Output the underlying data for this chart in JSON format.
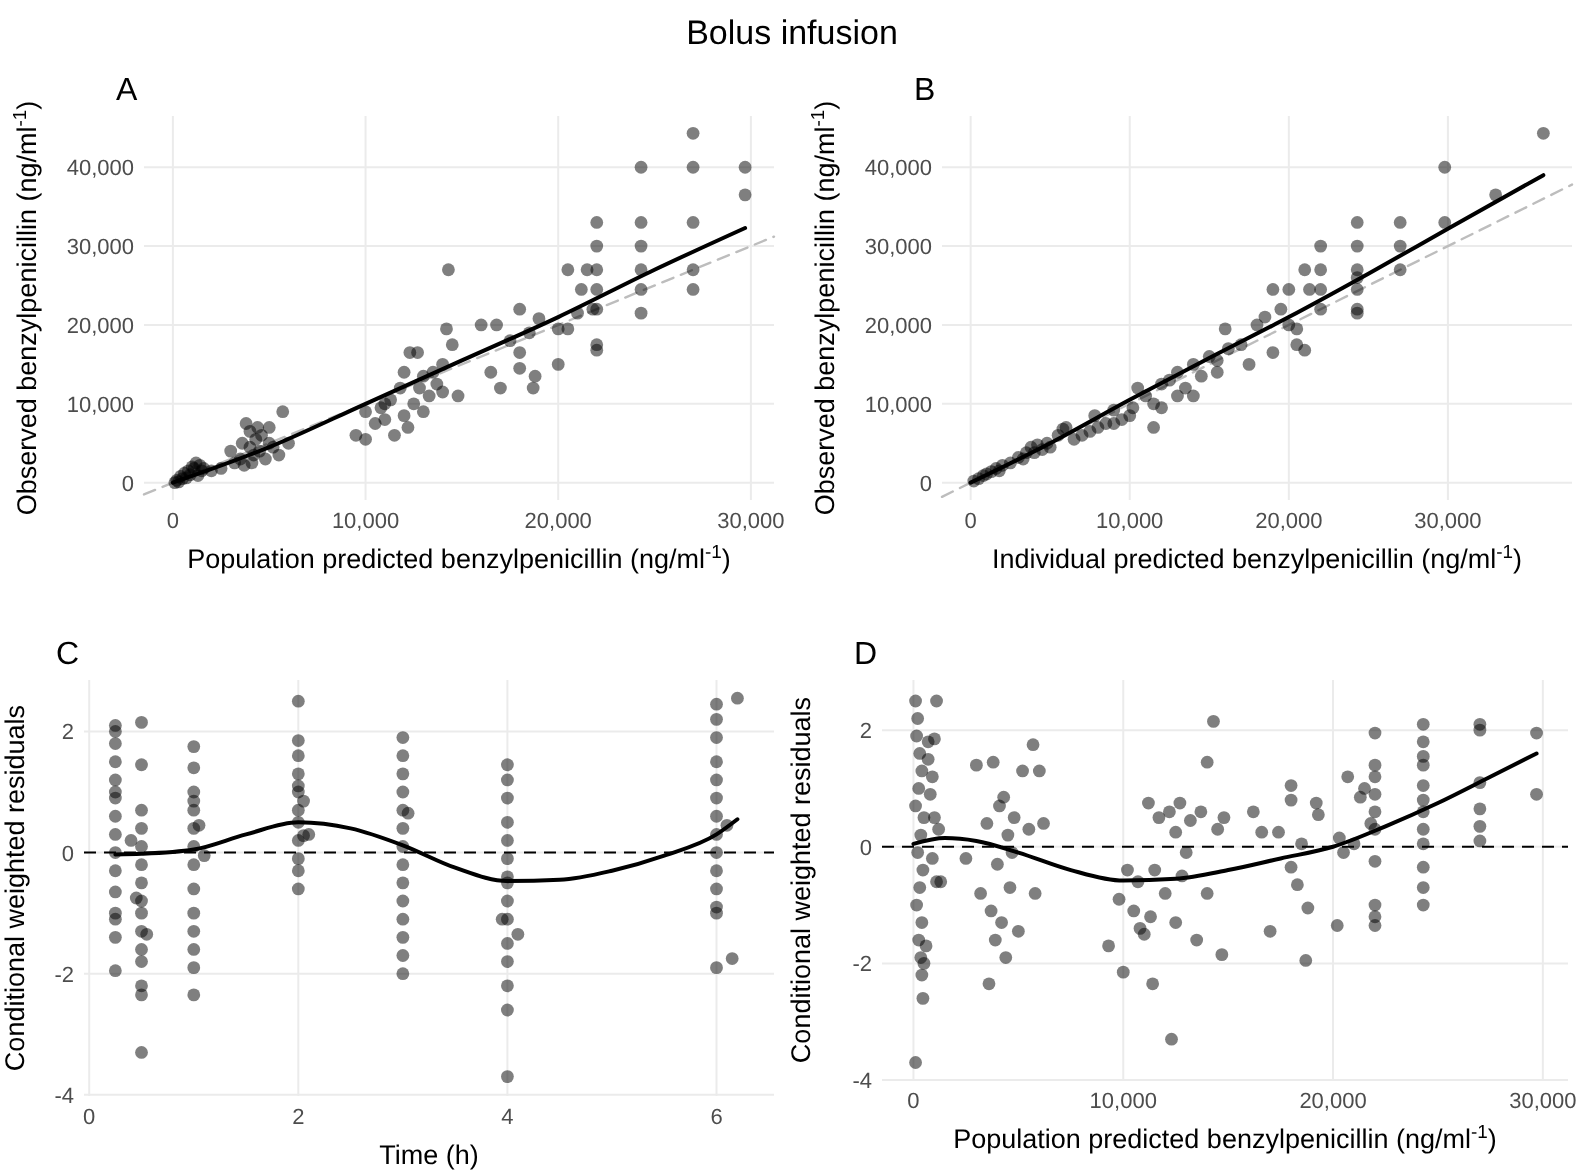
{
  "chart_data": [
    {
      "type": "other",
      "title": "Bolus infusion"
    },
    {
      "type": "scatter",
      "title": "A",
      "xlabel": "Population predicted benzylpenicillin (ng/ml$^{-1}$)",
      "ylabel": "Observed benzylpenicillin (ng/ml$^{-1}$)",
      "xlim": [
        -1500,
        31200
      ],
      "ylim": [
        -2200,
        46500
      ],
      "xticks": [
        0,
        {
          "value": 10000,
          "label": "10,000"
        },
        {
          "value": 20000,
          "label": "20,000"
        },
        {
          "value": 30000,
          "label": "30,000"
        }
      ],
      "yticks": [
        0,
        {
          "value": 10000,
          "label": "10,000"
        },
        {
          "value": 20000,
          "label": "20,000"
        },
        {
          "value": 30000,
          "label": "30,000"
        },
        {
          "value": 40000,
          "label": "40,000"
        }
      ],
      "grid": true,
      "series": [
        {
          "type": "line",
          "color": "#bdbdbd",
          "line_style": "dashed",
          "x": [
            -1500,
            31200
          ],
          "values": [
            -1500,
            31200
          ]
        },
        {
          "type": "scatter",
          "color": "#000000",
          "marker": "circle",
          "x": [
            200,
            400,
            600,
            800,
            1000,
            1200,
            300,
            500,
            900,
            1100,
            1400,
            1500,
            700,
            100,
            1300,
            1600,
            2000,
            2500,
            3000,
            3200,
            3500,
            3600,
            3800,
            4000,
            4000,
            4200,
            4300,
            4500,
            4600,
            4800,
            5000,
            5000,
            5200,
            5500,
            5700,
            6000,
            3700,
            4400,
            4100,
            9500,
            10000,
            10000,
            10500,
            10800,
            11000,
            11300,
            11500,
            11800,
            12000,
            12000,
            12300,
            12500,
            12700,
            12800,
            13000,
            13000,
            13300,
            13500,
            13700,
            14000,
            14000,
            14300,
            14500,
            14800,
            14200,
            11000,
            12200,
            16000,
            16500,
            16800,
            17000,
            17500,
            18000,
            18000,
            18000,
            18500,
            18700,
            18800,
            19000,
            20000,
            20000,
            20500,
            20500,
            21000,
            21200,
            21500,
            21800,
            22000,
            22000,
            22000,
            22000,
            22000,
            22000,
            22000,
            24300,
            24300,
            24300,
            24300,
            24300,
            24300,
            27000,
            27000,
            27000,
            27000,
            27000,
            29700,
            29700
          ],
          "values": [
            300,
            800,
            1200,
            1500,
            2000,
            2500,
            100,
            500,
            1000,
            1800,
            2200,
            1500,
            600,
            0,
            900,
            1800,
            1500,
            1800,
            4000,
            2500,
            3000,
            5000,
            7500,
            4500,
            6500,
            3500,
            5500,
            4000,
            6000,
            3000,
            5000,
            7000,
            4500,
            3500,
            9000,
            5000,
            2200,
            7000,
            2500,
            6000,
            5500,
            9000,
            7500,
            9500,
            8000,
            10500,
            6000,
            12000,
            8500,
            14000,
            16500,
            10000,
            16500,
            12000,
            9000,
            13500,
            11000,
            14000,
            12500,
            15000,
            11500,
            27000,
            17500,
            11000,
            19500,
            10000,
            7000,
            20000,
            14000,
            20000,
            12000,
            18000,
            22000,
            14500,
            16500,
            19000,
            12000,
            13500,
            20800,
            15000,
            19500,
            27000,
            19500,
            21500,
            24500,
            27000,
            22000,
            33000,
            30000,
            27000,
            24500,
            22000,
            17500,
            16800,
            40000,
            33000,
            30000,
            27000,
            24500,
            21500,
            44300,
            40000,
            33000,
            27000,
            24500,
            40000,
            36500
          ]
        },
        {
          "type": "line",
          "color": "#000000",
          "x": [
            0,
            5000,
            10000,
            15000,
            20000,
            25000,
            29700
          ],
          "values": [
            0,
            4500,
            10000,
            15500,
            21000,
            27000,
            32300
          ]
        }
      ]
    },
    {
      "type": "scatter",
      "title": "B",
      "xlabel": "Individual predicted benzylpenicillin (ng/ml$^{-1}$)",
      "ylabel": "Observed benzylpenicillin (ng/ml$^{-1}$)",
      "xlim": [
        -1800,
        37800
      ],
      "ylim": [
        -2200,
        46500
      ],
      "xticks": [
        0,
        {
          "value": 10000,
          "label": "10,000"
        },
        {
          "value": 20000,
          "label": "20,000"
        },
        {
          "value": 30000,
          "label": "30,000"
        }
      ],
      "yticks": [
        0,
        {
          "value": 10000,
          "label": "10,000"
        },
        {
          "value": 20000,
          "label": "20,000"
        },
        {
          "value": 30000,
          "label": "30,000"
        },
        {
          "value": 40000,
          "label": "40,000"
        }
      ],
      "grid": true,
      "series": [
        {
          "type": "line",
          "color": "#bdbdbd",
          "line_style": "dashed",
          "x": [
            -1800,
            37800
          ],
          "values": [
            -1800,
            37800
          ]
        },
        {
          "type": "scatter",
          "color": "#000000",
          "marker": "circle",
          "x": [
            200,
            500,
            800,
            1000,
            1300,
            1600,
            2000,
            2500,
            3000,
            3500,
            3800,
            4000,
            4200,
            4500,
            4800,
            5000,
            5500,
            5800,
            6000,
            6500,
            7000,
            7500,
            7800,
            8000,
            8500,
            9000,
            9500,
            10000,
            10200,
            10500,
            11000,
            11500,
            11500,
            12000,
            12000,
            12500,
            13000,
            13000,
            13500,
            14000,
            14000,
            14500,
            15000,
            15500,
            15500,
            16000,
            16200,
            17000,
            17500,
            18000,
            18500,
            19000,
            19000,
            19500,
            20000,
            20500,
            20500,
            21000,
            21000,
            21300,
            22000,
            22000,
            22000,
            22000,
            24300,
            24300,
            24300,
            24300,
            24300,
            24300,
            24300,
            27000,
            27000,
            27000,
            29800,
            29800,
            33000,
            36000,
            20000,
            1800,
            3300,
            9000
          ],
          "values": [
            200,
            500,
            900,
            1100,
            1400,
            1800,
            2200,
            2500,
            3200,
            3800,
            4500,
            3800,
            4800,
            4200,
            5000,
            4500,
            6000,
            6800,
            7000,
            5500,
            6000,
            6500,
            8500,
            7000,
            7500,
            7500,
            8000,
            8500,
            9500,
            12000,
            11000,
            7000,
            10000,
            12500,
            9500,
            13000,
            11000,
            14000,
            12000,
            15000,
            11000,
            13500,
            16000,
            14000,
            15500,
            19500,
            17000,
            17500,
            15000,
            20000,
            21000,
            16500,
            24500,
            22000,
            24500,
            19500,
            17500,
            27000,
            16800,
            24500,
            22000,
            27000,
            30000,
            24500,
            33000,
            30000,
            27000,
            26000,
            24500,
            22000,
            21500,
            33000,
            30000,
            27000,
            40000,
            33000,
            36500,
            44300,
            20000,
            1500,
            3000,
            9200
          ]
        },
        {
          "type": "line",
          "color": "#000000",
          "x": [
            0,
            5000,
            10000,
            15000,
            20000,
            25000,
            30000,
            36000
          ],
          "values": [
            0,
            5000,
            10500,
            15800,
            21000,
            26500,
            32200,
            39000
          ]
        }
      ]
    },
    {
      "type": "scatter",
      "title": "C",
      "xlabel": "Time (h)",
      "ylabel": "Conditional weighted residuals",
      "xlim": [
        -0.05,
        6.55
      ],
      "ylim": [
        -4.02,
        2.85
      ],
      "xticks": [
        0,
        2,
        4,
        6
      ],
      "yticks": [
        -4,
        -2,
        0,
        2
      ],
      "grid": true,
      "ref_lines": [
        {
          "axis": "y",
          "value": 0,
          "color": "#000000",
          "line_style": "dashed"
        }
      ],
      "series": [
        {
          "type": "scatter",
          "color": "#000000",
          "marker": "circle",
          "x": [
            0.25,
            0.25,
            0.25,
            0.25,
            0.25,
            0.25,
            0.25,
            0.25,
            0.25,
            0.25,
            0.25,
            0.25,
            0.25,
            0.25,
            0.25,
            0.25,
            0.4,
            0.5,
            0.5,
            0.5,
            0.5,
            0.5,
            0.5,
            0.5,
            0.5,
            0.5,
            0.5,
            0.5,
            0.5,
            0.5,
            0.5,
            0.5,
            0.55,
            0.45,
            1,
            1,
            1,
            1,
            1,
            1,
            1,
            1,
            1,
            1,
            1,
            1,
            1,
            1,
            1.05,
            1.1,
            2,
            2,
            2,
            2,
            2,
            2,
            2,
            2,
            2,
            2,
            2,
            2,
            2.05,
            2.1,
            2.05,
            3,
            3,
            3,
            3,
            3,
            3,
            3,
            3,
            3,
            3,
            3,
            3,
            3,
            3,
            3.05,
            4,
            4,
            4,
            4,
            4,
            4,
            4,
            4,
            4,
            4,
            4,
            4,
            4,
            4,
            4,
            3.95,
            4.1,
            6,
            6,
            6,
            6,
            6,
            6,
            6,
            6,
            6,
            6,
            6,
            6,
            6,
            6,
            6.1,
            6.15,
            6.2
          ],
          "values": [
            2.1,
            2.0,
            1.8,
            1.5,
            1.2,
            0.9,
            0.6,
            0.3,
            0,
            -0.3,
            -0.65,
            -1.0,
            -1.4,
            -1.95,
            1.0,
            -1.1,
            0.2,
            2.15,
            1.45,
            0.7,
            0.4,
            0.1,
            -0.2,
            -0.5,
            -0.8,
            -1.0,
            -1.3,
            -1.6,
            -1.8,
            -2.2,
            -2.35,
            -3.3,
            -1.35,
            -0.75,
            1.75,
            1.4,
            1.0,
            0.7,
            0.4,
            0.1,
            -0.2,
            -0.6,
            -1.0,
            -1.3,
            -1.6,
            -1.9,
            -2.35,
            0.85,
            0.45,
            -0.05,
            2.5,
            1.85,
            1.6,
            1.3,
            1.0,
            0.7,
            0.5,
            0.2,
            -0.1,
            -0.3,
            -0.6,
            1.1,
            0.85,
            0.3,
            0.28,
            1.9,
            1.6,
            1.3,
            1.0,
            0.7,
            0.4,
            0.1,
            -0.2,
            -0.5,
            -0.8,
            -1.1,
            -1.4,
            -1.7,
            -2.0,
            0.65,
            1.45,
            1.2,
            0.9,
            0.5,
            0.2,
            -0.1,
            -0.5,
            -0.8,
            -1.1,
            -1.5,
            -1.8,
            -2.2,
            -2.6,
            -3.7,
            -0.4,
            -1.1,
            -1.35,
            2.45,
            2.2,
            1.9,
            1.5,
            1.2,
            0.9,
            0.6,
            0.3,
            0,
            -0.3,
            -0.6,
            -0.9,
            -1.0,
            -1.9,
            0.45,
            -1.75,
            2.55
          ]
        },
        {
          "type": "line",
          "color": "#000000",
          "x": [
            0.25,
            0.5,
            1,
            1.5,
            2,
            2.5,
            3,
            3.5,
            4,
            4.5,
            5,
            5.5,
            6,
            6.2
          ],
          "values": [
            -0.03,
            -0.02,
            0.05,
            0.3,
            0.5,
            0.4,
            0.12,
            -0.25,
            -0.47,
            -0.45,
            -0.3,
            -0.05,
            0.3,
            0.55
          ]
        }
      ]
    },
    {
      "type": "scatter",
      "title": "D",
      "xlabel": "Population predicted benzylpenicillin (ng/ml$^{-1}$)",
      "ylabel": "Conditional weighted residuals",
      "xlim": [
        -1500,
        31200
      ],
      "ylim": [
        -4.0,
        2.86
      ],
      "xticks": [
        0,
        {
          "value": 10000,
          "label": "10,000"
        },
        {
          "value": 20000,
          "label": "20,000"
        },
        {
          "value": 30000,
          "label": "30,000"
        }
      ],
      "yticks": [
        -4,
        -2,
        0,
        2
      ],
      "grid": true,
      "ref_lines": [
        {
          "axis": "y",
          "value": 0,
          "color": "#000000",
          "line_style": "dashed"
        }
      ],
      "series": [
        {
          "type": "scatter",
          "color": "#000000",
          "marker": "circle",
          "x": [
            100,
            200,
            150,
            300,
            400,
            250,
            100,
            500,
            350,
            200,
            450,
            300,
            150,
            400,
            250,
            350,
            500,
            400,
            450,
            100,
            700,
            900,
            1000,
            1100,
            800,
            1200,
            900,
            1100,
            1300,
            600,
            700,
            1000,
            2500,
            3000,
            3200,
            3500,
            3600,
            3700,
            3800,
            4000,
            4100,
            4200,
            4300,
            4400,
            4500,
            4600,
            4800,
            5000,
            5200,
            5500,
            5700,
            5800,
            6000,
            6200,
            3900,
            4700,
            9300,
            9800,
            10000,
            10200,
            10500,
            10700,
            11000,
            11200,
            11300,
            11400,
            11500,
            11700,
            12000,
            12200,
            12300,
            12500,
            12500,
            12700,
            13000,
            13200,
            13500,
            13700,
            14000,
            14000,
            14300,
            14500,
            14700,
            14800,
            10800,
            12800,
            16200,
            16600,
            17000,
            17400,
            18000,
            18000,
            18000,
            18300,
            18500,
            18700,
            18800,
            19200,
            19300,
            20200,
            20300,
            20500,
            20700,
            21000,
            21300,
            21500,
            21800,
            22000,
            22000,
            22000,
            22000,
            22000,
            22000,
            22000,
            22000,
            22000,
            22000,
            24300,
            24300,
            24300,
            24300,
            24300,
            24300,
            24300,
            24300,
            24300,
            24300,
            24300,
            24300,
            27000,
            27000,
            27000,
            27000,
            27000,
            27000,
            29700,
            29700
          ],
          "values": [
            2.5,
            2.2,
            1.9,
            1.6,
            1.3,
            1.0,
            0.7,
            0.5,
            0.2,
            -0.1,
            -0.4,
            -0.7,
            -1.0,
            -1.3,
            -1.6,
            -1.9,
            -2.0,
            -2.2,
            -2.6,
            -3.7,
            1.5,
            1.2,
            1.85,
            2.5,
            0.9,
            0.3,
            -0.2,
            -0.6,
            -0.6,
            -1.7,
            1.8,
            0.5,
            -0.2,
            1.4,
            -0.8,
            0.4,
            -2.35,
            -1.1,
            1.45,
            -0.3,
            0.7,
            -1.3,
            0.85,
            -1.9,
            0.2,
            -0.7,
            0.5,
            -1.45,
            1.3,
            0.3,
            1.75,
            -0.8,
            1.3,
            0.4,
            -1.6,
            -0.1,
            -1.7,
            -0.9,
            -2.15,
            -0.4,
            -1.1,
            -0.6,
            -1.5,
            0.75,
            -1.2,
            -2.35,
            -0.4,
            0.5,
            -0.8,
            0.6,
            -3.3,
            -1.3,
            0.25,
            0.75,
            -0.1,
            0.45,
            -1.6,
            0.6,
            -0.8,
            1.45,
            2.15,
            0.3,
            -1.85,
            0.5,
            -1.4,
            -0.5,
            0.6,
            0.25,
            -1.45,
            0.25,
            1.05,
            0.8,
            -0.35,
            -0.65,
            0.05,
            -1.95,
            -1.05,
            0.75,
            0.55,
            -1.35,
            0.15,
            -0.1,
            1.2,
            0.05,
            0.85,
            1.0,
            0.4,
            1.95,
            1.4,
            1.2,
            0.9,
            0.6,
            0.3,
            -0.25,
            -1.0,
            -1.2,
            -1.35,
            2.1,
            1.8,
            1.55,
            1.4,
            1.05,
            0.8,
            0.6,
            0.3,
            0.05,
            -0.35,
            -0.7,
            -1.0,
            2.1,
            2.0,
            1.1,
            0.65,
            0.35,
            0.1,
            1.95,
            0.9
          ]
        },
        {
          "type": "line",
          "color": "#000000",
          "x": [
            0,
            1500,
            3000,
            5000,
            7500,
            10000,
            12500,
            15000,
            17500,
            20000,
            22500,
            25000,
            27500,
            29700
          ],
          "values": [
            0.05,
            0.15,
            0.1,
            -0.1,
            -0.4,
            -0.58,
            -0.55,
            -0.4,
            -0.2,
            0.0,
            0.35,
            0.75,
            1.2,
            1.6
          ]
        }
      ]
    }
  ]
}
